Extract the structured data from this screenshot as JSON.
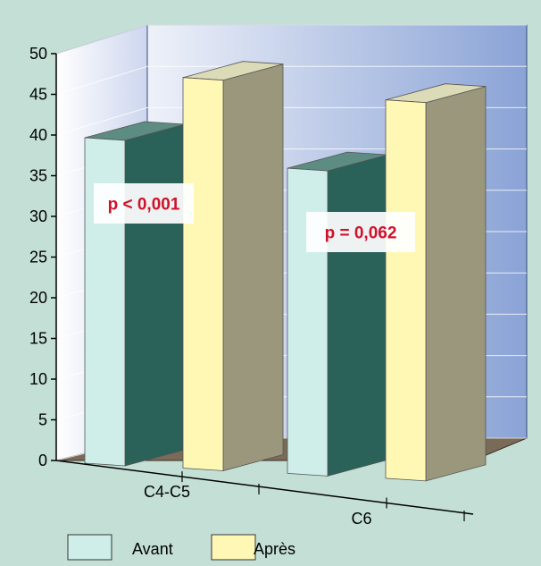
{
  "chart_data": {
    "type": "bar",
    "categories": [
      "C4-C5",
      "C6"
    ],
    "series": [
      {
        "name": "Avant",
        "values": [
          40,
          37.5
        ]
      },
      {
        "name": "Après",
        "values": [
          48,
          46.5
        ]
      }
    ],
    "ylim": [
      0,
      50
    ],
    "yticks": [
      0,
      5,
      10,
      15,
      20,
      25,
      30,
      35,
      40,
      45,
      50
    ],
    "annotations": [
      {
        "category": "C4-C5",
        "text": "p < 0,001"
      },
      {
        "category": "C6",
        "text": "p = 0,062"
      }
    ],
    "grid": true,
    "legend_position": "bottom",
    "colors": {
      "background": "#c4e0d6",
      "wall": "#a9bde4",
      "floor": "#7a6a58",
      "avant_front": "#cfeeea",
      "avant_side": "#2a6158",
      "avant_top": "#5c8c82",
      "apres_front": "#fff8b4",
      "apres_side": "#9a977c",
      "apres_top": "#dcdbb8",
      "annotation_text": "#d0112b",
      "axis": "#000000"
    }
  }
}
